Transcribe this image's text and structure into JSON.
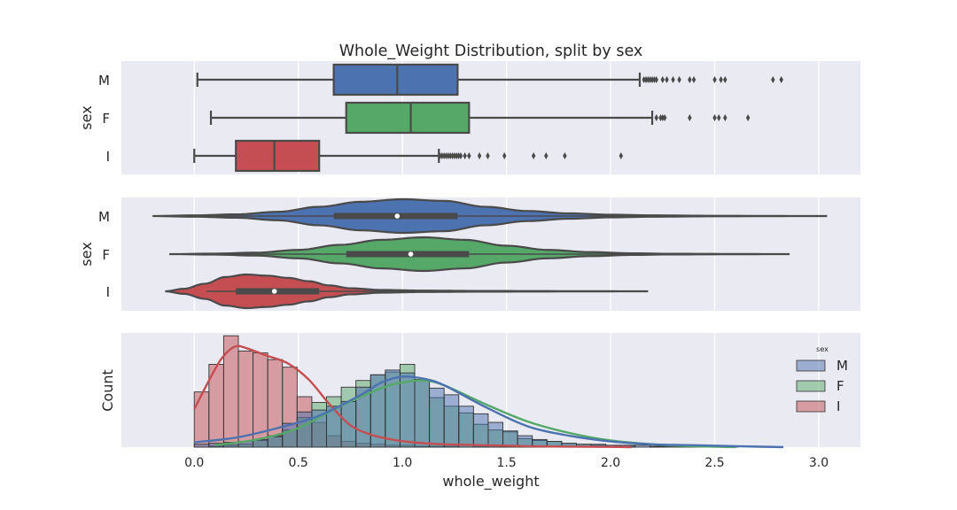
{
  "figure": {
    "title": "Whole_Weight Distribution, split by sex"
  },
  "colors": {
    "M": "#4c72b0",
    "F": "#55a868",
    "I": "#c44e52",
    "panel_bg": "#eaeaf2",
    "grid": "#ffffff",
    "line": "#4a4a4a"
  },
  "chart_data": [
    {
      "type": "box",
      "panel": "top",
      "title": "Whole_Weight Distribution, split by sex",
      "xlabel": "",
      "ylabel": "sex",
      "xlim": [
        -0.35,
        3.2
      ],
      "grid": true,
      "categories": [
        "M",
        "F",
        "I"
      ],
      "boxes": [
        {
          "name": "M",
          "whislo": 0.015,
          "q1": 0.67,
          "med": 0.975,
          "q3": 1.265,
          "whishi": 2.14,
          "fliers": [
            2.16,
            2.17,
            2.18,
            2.19,
            2.2,
            2.21,
            2.22,
            2.25,
            2.27,
            2.3,
            2.33,
            2.38,
            2.4,
            2.5,
            2.53,
            2.55,
            2.78,
            2.82
          ]
        },
        {
          "name": "F",
          "whislo": 0.08,
          "q1": 0.73,
          "med": 1.04,
          "q3": 1.32,
          "whishi": 2.2,
          "fliers": [
            2.22,
            2.24,
            2.25,
            2.26,
            2.38,
            2.5,
            2.52,
            2.55,
            2.66
          ]
        },
        {
          "name": "I",
          "whislo": 0.0,
          "q1": 0.2,
          "med": 0.385,
          "q3": 0.6,
          "whishi": 1.175,
          "fliers": [
            1.18,
            1.19,
            1.2,
            1.21,
            1.22,
            1.23,
            1.24,
            1.25,
            1.26,
            1.27,
            1.28,
            1.3,
            1.32,
            1.37,
            1.41,
            1.49,
            1.63,
            1.69,
            1.78,
            2.05
          ]
        }
      ]
    },
    {
      "type": "violin",
      "panel": "middle",
      "xlabel": "",
      "ylabel": "sex",
      "xlim": [
        -0.35,
        3.2
      ],
      "grid": true,
      "categories": [
        "M",
        "F",
        "I"
      ],
      "violins": [
        {
          "name": "M",
          "min": -0.2,
          "max": 3.04,
          "q1": 0.67,
          "med": 0.975,
          "q3": 1.265,
          "density": [
            [
              -0.2,
              0
            ],
            [
              0,
              0.04
            ],
            [
              0.2,
              0.1
            ],
            [
              0.4,
              0.25
            ],
            [
              0.6,
              0.55
            ],
            [
              0.8,
              0.85
            ],
            [
              1.0,
              1.0
            ],
            [
              1.2,
              0.9
            ],
            [
              1.4,
              0.55
            ],
            [
              1.6,
              0.3
            ],
            [
              1.8,
              0.16
            ],
            [
              2.0,
              0.08
            ],
            [
              2.2,
              0.04
            ],
            [
              2.5,
              0.015
            ],
            [
              2.8,
              0.005
            ],
            [
              3.04,
              0
            ]
          ]
        },
        {
          "name": "F",
          "min": -0.12,
          "max": 2.86,
          "q1": 0.73,
          "med": 1.04,
          "q3": 1.32,
          "density": [
            [
              -0.12,
              0
            ],
            [
              0.1,
              0.03
            ],
            [
              0.3,
              0.09
            ],
            [
              0.5,
              0.25
            ],
            [
              0.7,
              0.55
            ],
            [
              0.9,
              0.85
            ],
            [
              1.1,
              1.0
            ],
            [
              1.3,
              0.85
            ],
            [
              1.5,
              0.5
            ],
            [
              1.7,
              0.25
            ],
            [
              1.9,
              0.12
            ],
            [
              2.1,
              0.05
            ],
            [
              2.3,
              0.02
            ],
            [
              2.6,
              0.008
            ],
            [
              2.86,
              0
            ]
          ]
        },
        {
          "name": "I",
          "min": -0.14,
          "max": 2.18,
          "q1": 0.2,
          "med": 0.385,
          "q3": 0.6,
          "density": [
            [
              -0.14,
              0
            ],
            [
              -0.05,
              0.15
            ],
            [
              0.05,
              0.45
            ],
            [
              0.15,
              0.85
            ],
            [
              0.25,
              1.0
            ],
            [
              0.35,
              0.93
            ],
            [
              0.45,
              0.8
            ],
            [
              0.55,
              0.6
            ],
            [
              0.65,
              0.35
            ],
            [
              0.75,
              0.18
            ],
            [
              0.9,
              0.08
            ],
            [
              1.1,
              0.04
            ],
            [
              1.4,
              0.02
            ],
            [
              1.8,
              0.01
            ],
            [
              2.18,
              0
            ]
          ]
        }
      ]
    },
    {
      "type": "histogram",
      "panel": "bottom",
      "xlabel": "whole_weight",
      "ylabel": "Count",
      "xlim": [
        -0.35,
        3.2
      ],
      "ylim": [
        0,
        120
      ],
      "grid": true,
      "xticks": [
        0.0,
        0.5,
        1.0,
        1.5,
        2.0,
        2.5,
        3.0
      ],
      "xtick_labels": [
        "0.0",
        "0.5",
        "1.0",
        "1.5",
        "2.0",
        "2.5",
        "3.0"
      ],
      "bin_start": 0.0,
      "bin_width": 0.0706,
      "legend": {
        "title": "sex",
        "position": "right",
        "entries": [
          "M",
          "F",
          "I"
        ]
      },
      "series": [
        {
          "name": "I",
          "counts": [
            58,
            87,
            117,
            101,
            99,
            92,
            84,
            53,
            26,
            12,
            6,
            4,
            3,
            2,
            2,
            1,
            1,
            1,
            0,
            1
          ],
          "kde_x": [
            0.0,
            0.1,
            0.15,
            0.2,
            0.25,
            0.35,
            0.45,
            0.55,
            0.65,
            0.75,
            0.85,
            0.95,
            1.05,
            1.2,
            1.4,
            1.6,
            1.8,
            2.0,
            2.1
          ],
          "kde_y": [
            40,
            82,
            98,
            106,
            104,
            96,
            88,
            71,
            45,
            23,
            13,
            8,
            5,
            3,
            2,
            1,
            0.5,
            0.3,
            0
          ]
        },
        {
          "name": "F",
          "counts": [
            0,
            1,
            2,
            3,
            7,
            12,
            18,
            31,
            47,
            53,
            63,
            70,
            76,
            79,
            87,
            71,
            52,
            43,
            36,
            24,
            18,
            16,
            9,
            7,
            6,
            4,
            3,
            2,
            1,
            1,
            0,
            1,
            0,
            0,
            0
          ],
          "kde_x": [
            0.1,
            0.3,
            0.5,
            0.7,
            0.9,
            1.0,
            1.1,
            1.2,
            1.4,
            1.6,
            1.8,
            2.0,
            2.2,
            2.4,
            2.6
          ],
          "kde_y": [
            2,
            8,
            20,
            43,
            62,
            68,
            70,
            65,
            45,
            27,
            15,
            7,
            3,
            1,
            0
          ]
        },
        {
          "name": "M",
          "counts": [
            3,
            4,
            5,
            6,
            8,
            11,
            25,
            37,
            39,
            43,
            48,
            63,
            76,
            81,
            78,
            71,
            62,
            55,
            43,
            35,
            26,
            17,
            12,
            8,
            6,
            4,
            3,
            3,
            2,
            2,
            2,
            1,
            1,
            1,
            1,
            1,
            1,
            0,
            0,
            0
          ],
          "kde_x": [
            0.0,
            0.2,
            0.4,
            0.6,
            0.8,
            0.9,
            1.0,
            1.1,
            1.2,
            1.4,
            1.6,
            1.8,
            2.0,
            2.2,
            2.4,
            2.6,
            2.83
          ],
          "kde_y": [
            5,
            10,
            20,
            33,
            55,
            68,
            74,
            72,
            65,
            42,
            22,
            12,
            6,
            3,
            2,
            1,
            0
          ]
        }
      ]
    }
  ]
}
